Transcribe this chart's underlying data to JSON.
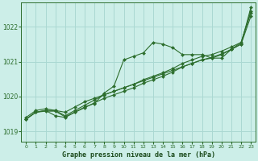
{
  "title": "",
  "xlabel": "Graphe pression niveau de la mer (hPa)",
  "ylabel": "",
  "bg_color": "#cceee8",
  "grid_color": "#aad8d2",
  "line_color": "#2d6e2d",
  "xlim": [
    -0.5,
    23.5
  ],
  "ylim": [
    1018.7,
    1022.7
  ],
  "yticks": [
    1019,
    1020,
    1021,
    1022
  ],
  "xticks": [
    0,
    1,
    2,
    3,
    4,
    5,
    6,
    7,
    8,
    9,
    10,
    11,
    12,
    13,
    14,
    15,
    16,
    17,
    18,
    19,
    20,
    21,
    22,
    23
  ],
  "series": [
    [
      1019.4,
      1019.6,
      1019.65,
      1019.6,
      1019.55,
      1019.7,
      1019.85,
      1019.95,
      1020.05,
      1020.15,
      1020.25,
      1020.35,
      1020.45,
      1020.55,
      1020.65,
      1020.75,
      1020.85,
      1020.95,
      1021.05,
      1021.1,
      1021.2,
      1021.35,
      1021.5,
      1022.55
    ],
    [
      1019.35,
      1019.55,
      1019.6,
      1019.45,
      1019.4,
      1019.55,
      1019.7,
      1019.8,
      1020.1,
      1020.3,
      1021.05,
      1021.15,
      1021.25,
      1021.55,
      1021.5,
      1021.4,
      1021.2,
      1021.2,
      1021.2,
      1021.1,
      1021.1,
      1021.35,
      1021.55,
      1022.45
    ],
    [
      1019.35,
      1019.55,
      1019.6,
      1019.6,
      1019.45,
      1019.6,
      1019.75,
      1019.9,
      1020.05,
      1020.15,
      1020.25,
      1020.35,
      1020.48,
      1020.58,
      1020.68,
      1020.8,
      1020.95,
      1021.05,
      1021.15,
      1021.2,
      1021.3,
      1021.42,
      1021.55,
      1022.4
    ],
    [
      1019.35,
      1019.55,
      1019.58,
      1019.58,
      1019.42,
      1019.55,
      1019.68,
      1019.82,
      1019.95,
      1020.05,
      1020.15,
      1020.25,
      1020.38,
      1020.48,
      1020.58,
      1020.7,
      1020.85,
      1020.95,
      1021.05,
      1021.12,
      1021.22,
      1021.35,
      1021.5,
      1022.3
    ]
  ]
}
